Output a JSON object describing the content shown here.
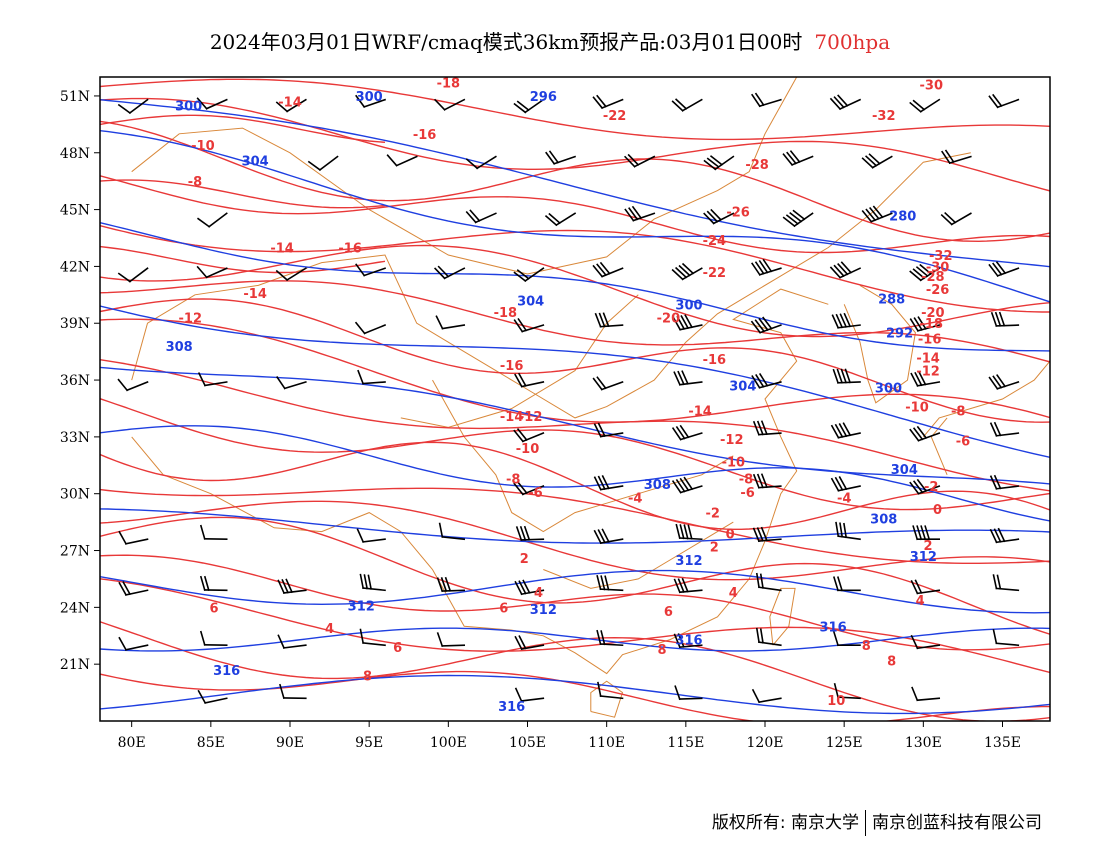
{
  "title": {
    "main": "2024年03月01日WRF/cmaq模式36km预报产品:03月01日00时",
    "level": "700hpa"
  },
  "colors": {
    "temperature": "#e83838",
    "height": "#1f3fe0",
    "boundary": "#d9883a",
    "wind": "#000000",
    "level_text": "#e03030"
  },
  "axes": {
    "x_ticks": [
      "80E",
      "85E",
      "90E",
      "95E",
      "100E",
      "105E",
      "110E",
      "115E",
      "120E",
      "125E",
      "130E",
      "135E"
    ],
    "x_values": [
      80,
      85,
      90,
      95,
      100,
      105,
      110,
      115,
      120,
      125,
      130,
      135
    ],
    "y_ticks": [
      "51N",
      "48N",
      "45N",
      "42N",
      "39N",
      "36N",
      "33N",
      "30N",
      "27N",
      "24N",
      "21N"
    ],
    "y_values": [
      51,
      48,
      45,
      42,
      39,
      36,
      33,
      30,
      27,
      24,
      21
    ],
    "lon_range": [
      78,
      138
    ],
    "lat_range": [
      18,
      52
    ]
  },
  "temperature_labels": [
    {
      "text": "-18",
      "lon": 100,
      "lat": 51.7
    },
    {
      "text": "-14",
      "lon": 90,
      "lat": 50.7
    },
    {
      "text": "-10",
      "lon": 84.5,
      "lat": 48.4
    },
    {
      "text": "-8",
      "lon": 84,
      "lat": 46.5
    },
    {
      "text": "-16",
      "lon": 98.5,
      "lat": 49.0
    },
    {
      "text": "-22",
      "lon": 110.5,
      "lat": 50.0
    },
    {
      "text": "-28",
      "lon": 119.5,
      "lat": 47.4
    },
    {
      "text": "-30",
      "lon": 130.5,
      "lat": 51.6
    },
    {
      "text": "-32",
      "lon": 127.5,
      "lat": 50.0
    },
    {
      "text": "-26",
      "lon": 118.3,
      "lat": 44.9
    },
    {
      "text": "-24",
      "lon": 116.8,
      "lat": 43.4
    },
    {
      "text": "-32",
      "lon": 131.1,
      "lat": 42.6
    },
    {
      "text": "-22",
      "lon": 116.8,
      "lat": 41.7
    },
    {
      "text": "-14",
      "lon": 89.5,
      "lat": 43.0
    },
    {
      "text": "-16",
      "lon": 93.8,
      "lat": 43.0
    },
    {
      "text": "-14",
      "lon": 87.8,
      "lat": 40.6
    },
    {
      "text": "-12",
      "lon": 83.7,
      "lat": 39.3
    },
    {
      "text": "-18",
      "lon": 103.6,
      "lat": 39.6
    },
    {
      "text": "-20",
      "lon": 113.9,
      "lat": 39.3
    },
    {
      "text": "-16",
      "lon": 104.0,
      "lat": 36.8
    },
    {
      "text": "-16",
      "lon": 116.8,
      "lat": 37.1
    },
    {
      "text": "-14",
      "lon": 104.0,
      "lat": 34.1
    },
    {
      "text": "-12",
      "lon": 105.2,
      "lat": 34.1
    },
    {
      "text": "-14",
      "lon": 115.9,
      "lat": 34.4
    },
    {
      "text": "-12",
      "lon": 117.9,
      "lat": 32.9
    },
    {
      "text": "-10",
      "lon": 105.0,
      "lat": 32.4
    },
    {
      "text": "-10",
      "lon": 118.0,
      "lat": 31.7
    },
    {
      "text": "-8",
      "lon": 118.8,
      "lat": 30.8
    },
    {
      "text": "-8",
      "lon": 104.1,
      "lat": 30.8
    },
    {
      "text": "-6",
      "lon": 105.5,
      "lat": 30.1
    },
    {
      "text": "-4",
      "lon": 111.8,
      "lat": 29.8
    },
    {
      "text": "-6",
      "lon": 118.9,
      "lat": 30.1
    },
    {
      "text": "-4",
      "lon": 125.0,
      "lat": 29.8
    },
    {
      "text": "-2",
      "lon": 116.7,
      "lat": 29.0
    },
    {
      "text": "0",
      "lon": 117.8,
      "lat": 27.9
    },
    {
      "text": "2",
      "lon": 116.8,
      "lat": 27.2
    },
    {
      "text": "2",
      "lon": 104.8,
      "lat": 26.6
    },
    {
      "text": "4",
      "lon": 105.7,
      "lat": 24.8
    },
    {
      "text": "6",
      "lon": 103.5,
      "lat": 24.0
    },
    {
      "text": "4",
      "lon": 118.0,
      "lat": 24.8
    },
    {
      "text": "6",
      "lon": 113.9,
      "lat": 23.8
    },
    {
      "text": "6",
      "lon": 85.2,
      "lat": 24.0
    },
    {
      "text": "4",
      "lon": 92.5,
      "lat": 22.9
    },
    {
      "text": "6",
      "lon": 96.8,
      "lat": 21.9
    },
    {
      "text": "8",
      "lon": 94.9,
      "lat": 20.4
    },
    {
      "text": "8",
      "lon": 113.5,
      "lat": 21.8
    },
    {
      "text": "8",
      "lon": 128.0,
      "lat": 21.2
    },
    {
      "text": "8",
      "lon": 126.4,
      "lat": 22.0
    },
    {
      "text": "10",
      "lon": 124.5,
      "lat": 19.1
    },
    {
      "text": "-10",
      "lon": 129.6,
      "lat": 34.6
    },
    {
      "text": "-8",
      "lon": 132.2,
      "lat": 34.4
    },
    {
      "text": "-6",
      "lon": 132.5,
      "lat": 32.8
    },
    {
      "text": "-2",
      "lon": 130.5,
      "lat": 30.4
    },
    {
      "text": "0",
      "lon": 130.9,
      "lat": 29.2
    },
    {
      "text": "2",
      "lon": 130.3,
      "lat": 27.3
    },
    {
      "text": "4",
      "lon": 129.8,
      "lat": 24.4
    },
    {
      "text": "-12",
      "lon": 130.3,
      "lat": 36.5
    },
    {
      "text": "-14",
      "lon": 130.3,
      "lat": 37.2
    },
    {
      "text": "-18",
      "lon": 130.5,
      "lat": 39.0
    },
    {
      "text": "-20",
      "lon": 130.6,
      "lat": 39.6
    },
    {
      "text": "-16",
      "lon": 130.4,
      "lat": 38.2
    },
    {
      "text": "-28",
      "lon": 130.6,
      "lat": 41.5
    },
    {
      "text": "-30",
      "lon": 130.9,
      "lat": 42.0
    },
    {
      "text": "-26",
      "lon": 130.9,
      "lat": 40.8
    }
  ],
  "height_labels": [
    {
      "text": "300",
      "lon": 83.6,
      "lat": 50.5
    },
    {
      "text": "300",
      "lon": 95.0,
      "lat": 51.0
    },
    {
      "text": "296",
      "lon": 106.0,
      "lat": 51.0
    },
    {
      "text": "304",
      "lon": 87.8,
      "lat": 47.6
    },
    {
      "text": "280",
      "lon": 128.7,
      "lat": 44.7
    },
    {
      "text": "304",
      "lon": 105.2,
      "lat": 40.2
    },
    {
      "text": "300",
      "lon": 115.2,
      "lat": 40.0
    },
    {
      "text": "288",
      "lon": 128.0,
      "lat": 40.3
    },
    {
      "text": "292",
      "lon": 128.5,
      "lat": 38.5
    },
    {
      "text": "308",
      "lon": 83.0,
      "lat": 37.8
    },
    {
      "text": "304",
      "lon": 118.6,
      "lat": 35.7
    },
    {
      "text": "300",
      "lon": 127.8,
      "lat": 35.6
    },
    {
      "text": "304",
      "lon": 128.8,
      "lat": 31.3
    },
    {
      "text": "308",
      "lon": 113.2,
      "lat": 30.5
    },
    {
      "text": "308",
      "lon": 127.5,
      "lat": 28.7
    },
    {
      "text": "312",
      "lon": 115.2,
      "lat": 26.5
    },
    {
      "text": "312",
      "lon": 130.0,
      "lat": 26.7
    },
    {
      "text": "312",
      "lon": 94.5,
      "lat": 24.1
    },
    {
      "text": "312",
      "lon": 106.0,
      "lat": 23.9
    },
    {
      "text": "316",
      "lon": 115.2,
      "lat": 22.3
    },
    {
      "text": "316",
      "lon": 124.3,
      "lat": 23.0
    },
    {
      "text": "316",
      "lon": 86.0,
      "lat": 20.7
    },
    {
      "text": "316",
      "lon": 104.0,
      "lat": 18.8
    }
  ],
  "wind_rows": [
    {
      "lat": 50.8,
      "lons": [
        81,
        86,
        91,
        96,
        101,
        106,
        111,
        116,
        121,
        126,
        131,
        136
      ],
      "speed": [
        1,
        1,
        1,
        1,
        1,
        2,
        2,
        2,
        2,
        3,
        2,
        2
      ]
    },
    {
      "lat": 47.8,
      "lons": [
        93,
        98,
        103,
        108,
        113,
        118,
        123,
        128,
        133
      ],
      "speed": [
        1,
        1,
        1,
        2,
        2,
        3,
        3,
        3,
        2
      ]
    },
    {
      "lat": 44.8,
      "lons": [
        86,
        103,
        108,
        113,
        118,
        123,
        128,
        133
      ],
      "speed": [
        1,
        2,
        2,
        3,
        3,
        4,
        4,
        2
      ]
    },
    {
      "lat": 41.9,
      "lons": [
        81,
        86,
        91,
        96,
        101,
        106,
        111,
        116,
        121,
        126,
        131,
        136
      ],
      "speed": [
        1,
        1,
        1,
        1,
        2,
        2,
        3,
        4,
        4,
        4,
        4,
        3
      ]
    },
    {
      "lat": 38.9,
      "lons": [
        96,
        101,
        106,
        111,
        116,
        121,
        126,
        131,
        136
      ],
      "speed": [
        1,
        1,
        2,
        3,
        4,
        4,
        4,
        3,
        3
      ]
    },
    {
      "lat": 35.9,
      "lons": [
        81,
        86,
        91,
        96,
        106,
        111,
        116,
        121,
        126,
        131,
        136
      ],
      "speed": [
        1,
        1,
        1,
        1,
        2,
        2,
        3,
        3,
        4,
        3,
        3
      ]
    },
    {
      "lat": 33.2,
      "lons": [
        106,
        111,
        116,
        121,
        126,
        131,
        136
      ],
      "speed": [
        2,
        2,
        3,
        3,
        4,
        3,
        2
      ]
    },
    {
      "lat": 30.4,
      "lons": [
        106,
        111,
        116,
        121,
        126,
        131,
        136
      ],
      "speed": [
        2,
        3,
        4,
        3,
        3,
        3,
        2
      ]
    },
    {
      "lat": 27.6,
      "lons": [
        81,
        86,
        96,
        101,
        106,
        111,
        116,
        121,
        126,
        131,
        136
      ],
      "speed": [
        1,
        1,
        1,
        1,
        3,
        3,
        4,
        3,
        3,
        4,
        3
      ]
    },
    {
      "lat": 24.9,
      "lons": [
        81,
        86,
        91,
        96,
        101,
        106,
        111,
        116,
        121,
        126,
        131,
        136
      ],
      "speed": [
        2,
        2,
        3,
        3,
        3,
        3,
        3,
        3,
        2,
        2,
        2,
        2
      ]
    },
    {
      "lat": 22.0,
      "lons": [
        81,
        86,
        91,
        96,
        101,
        106,
        111,
        116,
        121,
        126,
        131,
        136
      ],
      "speed": [
        1,
        1,
        1,
        1,
        1,
        2,
        2,
        2,
        2,
        1,
        1,
        1
      ]
    },
    {
      "lat": 19.2,
      "lons": [
        86,
        91,
        106,
        111,
        116,
        121,
        126,
        131
      ],
      "speed": [
        1,
        1,
        1,
        1,
        1,
        1,
        1,
        1
      ]
    }
  ],
  "footer": {
    "left": "版权所有: 南京大学",
    "right": "南京创蓝科技有限公司"
  }
}
